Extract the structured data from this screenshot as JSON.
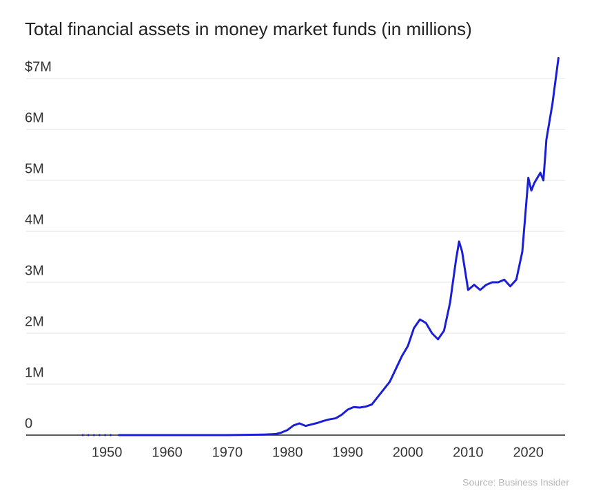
{
  "chart_data": {
    "type": "line",
    "title": "Total financial assets in money market funds (in millions)",
    "source": "Source: Business Insider",
    "series": [
      {
        "color": "#1a1fd6",
        "dash": true,
        "x": [
          1946,
          1947,
          1948,
          1949,
          1950,
          1951
        ],
        "values": [
          0,
          0,
          0,
          0,
          0,
          0
        ]
      },
      {
        "color": "#1a1fd6",
        "dash": false,
        "x": [
          1952,
          1960,
          1970,
          1976,
          1978,
          1979,
          1980,
          1981,
          1982,
          1983,
          1984,
          1985,
          1986,
          1987,
          1988,
          1989,
          1990,
          1991,
          1992,
          1993,
          1994,
          1995,
          1996,
          1997,
          1998,
          1999,
          2000,
          2001,
          2002,
          2003,
          2004,
          2005,
          2006,
          2007,
          2008,
          2008.5,
          2009,
          2010,
          2011,
          2012,
          2013,
          2014,
          2015,
          2016,
          2017,
          2018,
          2019,
          2020,
          2020.5,
          2021,
          2022,
          2022.5,
          2023,
          2024,
          2025
        ],
        "values": [
          0,
          0,
          0,
          0.01,
          0.02,
          0.05,
          0.1,
          0.19,
          0.23,
          0.18,
          0.21,
          0.24,
          0.28,
          0.31,
          0.33,
          0.4,
          0.5,
          0.55,
          0.54,
          0.56,
          0.6,
          0.75,
          0.9,
          1.05,
          1.3,
          1.55,
          1.75,
          2.1,
          2.27,
          2.2,
          2.0,
          1.88,
          2.05,
          2.6,
          3.45,
          3.8,
          3.6,
          2.85,
          2.95,
          2.85,
          2.95,
          3.0,
          3.0,
          3.05,
          2.92,
          3.05,
          3.6,
          5.05,
          4.8,
          4.95,
          5.15,
          5.0,
          5.8,
          6.5,
          7.4
        ]
      }
    ],
    "xlim": [
      1936.6,
      2026.1
    ],
    "xticks": [
      1950,
      1960,
      1970,
      1980,
      1990,
      2000,
      2010,
      2020
    ],
    "ylim": [
      0,
      7
    ],
    "yticks": [
      0,
      {
        "value": 1,
        "label": "1M"
      },
      {
        "value": 2,
        "label": "2M"
      },
      {
        "value": 3,
        "label": "3M"
      },
      {
        "value": 4,
        "label": "4M"
      },
      {
        "value": 5,
        "label": "5M"
      },
      {
        "value": 6,
        "label": "6M"
      },
      {
        "value": 7,
        "label": "$7M"
      }
    ],
    "grid": true
  }
}
